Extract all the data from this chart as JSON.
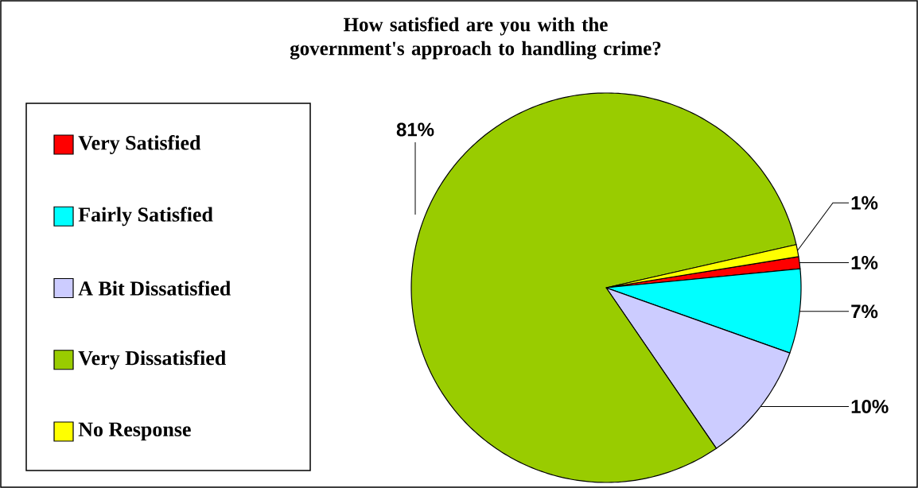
{
  "chart_data": {
    "type": "pie",
    "title": "How satisfied are you with the government's approach to handling crime?",
    "categories": [
      "Very Satisfied",
      "Fairly Satisfied",
      "A Bit Dissatisfied",
      "Very Dissatisfied",
      "No Response"
    ],
    "values": [
      1,
      7,
      10,
      81,
      1
    ],
    "colors": [
      "#ff0000",
      "#00ffff",
      "#ccccff",
      "#99cc00",
      "#ffff00"
    ],
    "value_labels": [
      "1%",
      "7%",
      "10%",
      "81%",
      "1%"
    ],
    "legend": "left"
  }
}
